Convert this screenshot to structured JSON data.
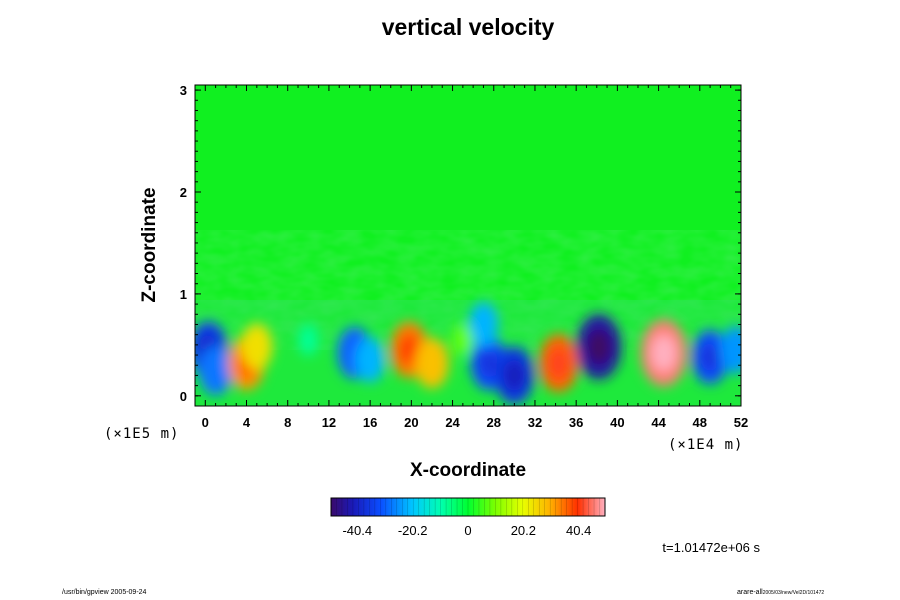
{
  "chart_data": {
    "type": "heatmap",
    "title": "vertical velocity",
    "xlabel": "X-coordinate",
    "ylabel": "Z-coordinate",
    "x_scale_label": "(×1E4 m)",
    "y_scale_label": "(×1E5 m)",
    "xlim": [
      -1,
      52
    ],
    "ylim": [
      -0.1,
      3.05
    ],
    "x_ticks": [
      0,
      4,
      8,
      12,
      16,
      20,
      24,
      28,
      32,
      36,
      40,
      44,
      48,
      52
    ],
    "y_ticks": [
      0,
      1,
      2,
      3
    ],
    "colorbar": {
      "range": [
        -50,
        50
      ],
      "tick_values": [
        -40.4,
        -20.2,
        0,
        20.2,
        40.4
      ],
      "tick_labels": [
        "-40.4",
        "-20.2",
        "0",
        "20.2",
        "40.4"
      ]
    },
    "cells": [
      {
        "x": 0.3,
        "z": 0.45,
        "value": -35
      },
      {
        "x": 1.0,
        "z": 0.25,
        "value": -28
      },
      {
        "x": 4.0,
        "z": 0.32,
        "value": 32
      },
      {
        "x": 5.0,
        "z": 0.48,
        "value": 24
      },
      {
        "x": 14.5,
        "z": 0.42,
        "value": -30
      },
      {
        "x": 16.0,
        "z": 0.35,
        "value": -22
      },
      {
        "x": 19.8,
        "z": 0.45,
        "value": 34
      },
      {
        "x": 22.0,
        "z": 0.32,
        "value": 28
      },
      {
        "x": 27.5,
        "z": 0.32,
        "value": -32
      },
      {
        "x": 30.0,
        "z": 0.2,
        "value": -36
      },
      {
        "x": 27.0,
        "z": 0.7,
        "value": -22
      },
      {
        "x": 34.3,
        "z": 0.32,
        "value": 36
      },
      {
        "x": 38.2,
        "z": 0.48,
        "value": -44
      },
      {
        "x": 44.5,
        "z": 0.42,
        "value": 46
      },
      {
        "x": 49.0,
        "z": 0.38,
        "value": -32
      },
      {
        "x": 51.5,
        "z": 0.45,
        "value": -25
      },
      {
        "x": 10.0,
        "z": 0.55,
        "value": -8
      },
      {
        "x": 25.0,
        "z": 0.55,
        "value": 8
      }
    ]
  },
  "annotations": {
    "time": "t=1.01472e+06 s",
    "footer_left": "/usr/bin/gpview 2005-09-24",
    "footer_right_main": "arare-all",
    "footer_right_sub": "2005/03/new/Vel2D/101472"
  }
}
